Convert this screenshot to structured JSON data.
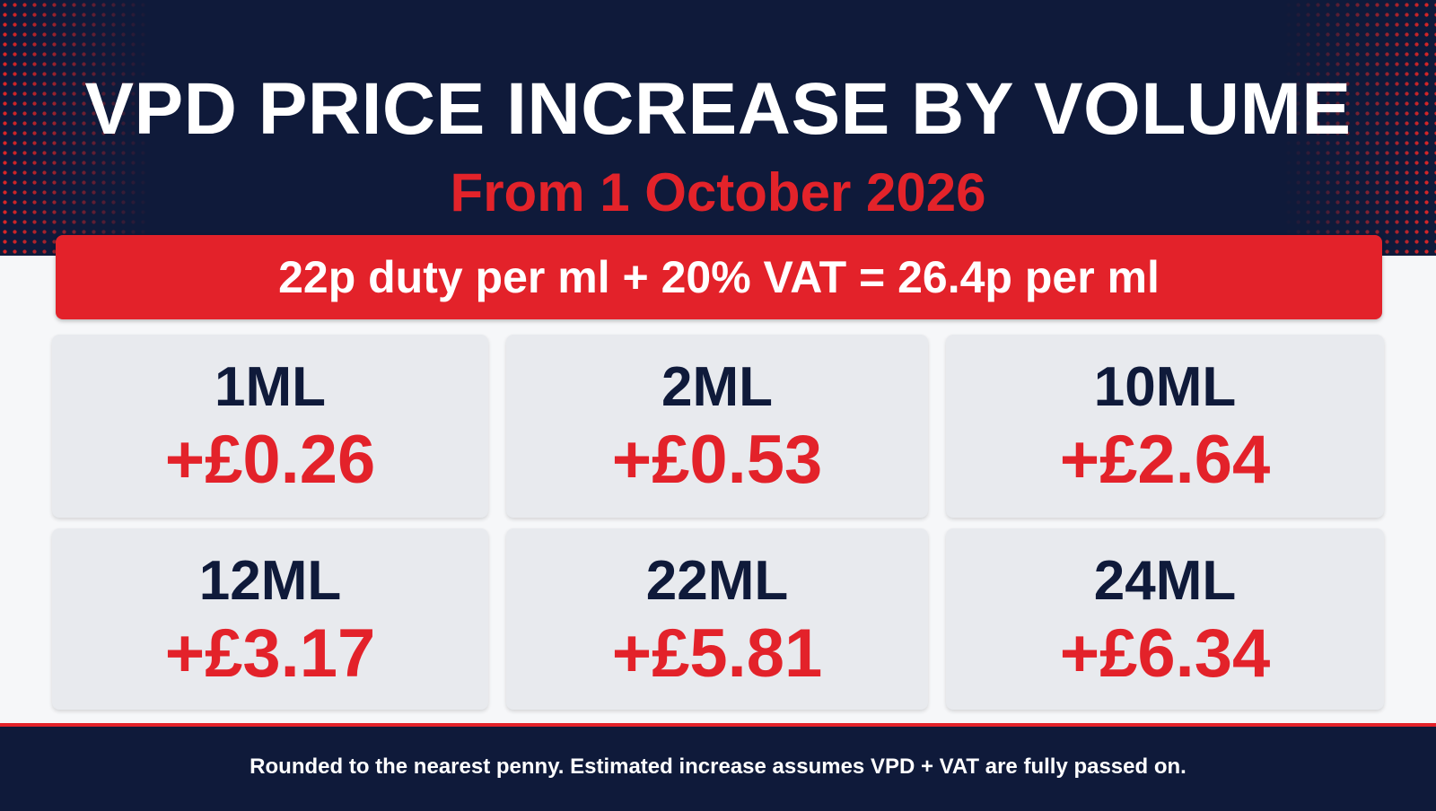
{
  "header": {
    "title": "VPD PRICE INCREASE BY VOLUME",
    "subtitle": "From 1 October 2026"
  },
  "banner": {
    "text": "22p duty per ml + 20% VAT = 26.4p per ml"
  },
  "cards": [
    {
      "volume": "1ML",
      "increase": "+£0.26"
    },
    {
      "volume": "2ML",
      "increase": "+£0.53"
    },
    {
      "volume": "10ML",
      "increase": "+£2.64"
    },
    {
      "volume": "12ML",
      "increase": "+£3.17"
    },
    {
      "volume": "22ML",
      "increase": "+£5.81"
    },
    {
      "volume": "24ML",
      "increase": "+£6.34"
    }
  ],
  "footer": {
    "note": "Rounded to the nearest penny. Estimated increase assumes VPD + VAT are fully passed on."
  },
  "colors": {
    "navy": "#0f1a3a",
    "red": "#e3222a",
    "card_bg": "#e8eaee",
    "white": "#ffffff"
  }
}
